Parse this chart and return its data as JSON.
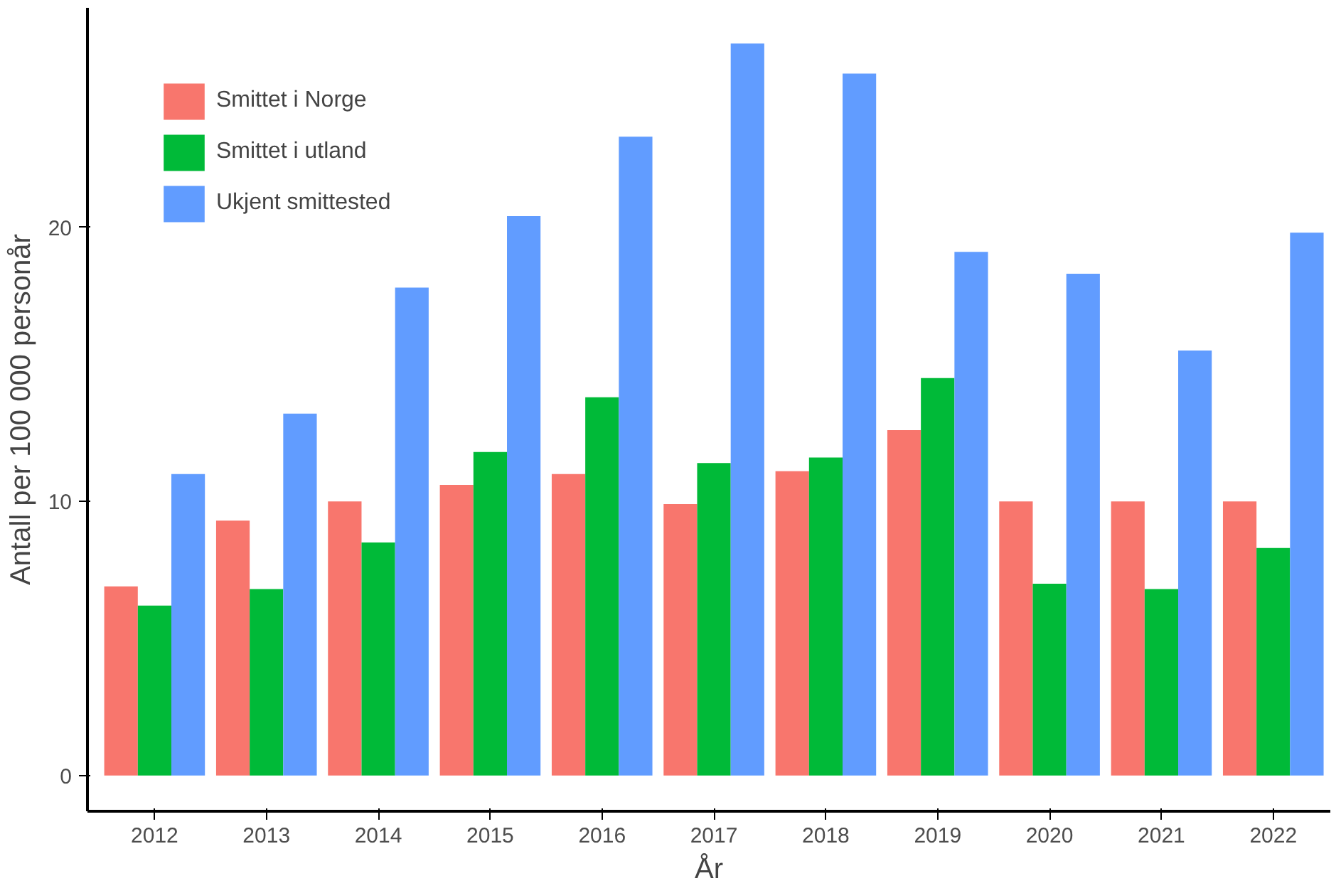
{
  "chart_data": {
    "type": "bar",
    "xlabel": "År",
    "ylabel": "Antall per 100 000 personår",
    "categories": [
      "2012",
      "2013",
      "2014",
      "2015",
      "2016",
      "2017",
      "2018",
      "2019",
      "2020",
      "2021",
      "2022"
    ],
    "series": [
      {
        "name": "Smittet i Norge",
        "color": "#f8766d",
        "values": [
          6.9,
          9.3,
          10.0,
          10.6,
          11.0,
          9.9,
          11.1,
          12.6,
          10.0,
          10.0,
          10.0
        ]
      },
      {
        "name": "Smittet i utland",
        "color": "#00ba38",
        "values": [
          6.2,
          6.8,
          8.5,
          11.8,
          13.8,
          11.4,
          11.6,
          14.5,
          7.0,
          6.8,
          8.3
        ]
      },
      {
        "name": "Ukjent smittested",
        "color": "#619cff",
        "values": [
          11.0,
          13.2,
          17.8,
          20.4,
          23.3,
          26.7,
          25.6,
          19.1,
          18.3,
          15.5,
          19.8
        ]
      }
    ],
    "ylim": [
      -1.3,
      28
    ],
    "yticks": [
      0,
      10,
      20
    ],
    "grid": false,
    "legend": "top left"
  }
}
